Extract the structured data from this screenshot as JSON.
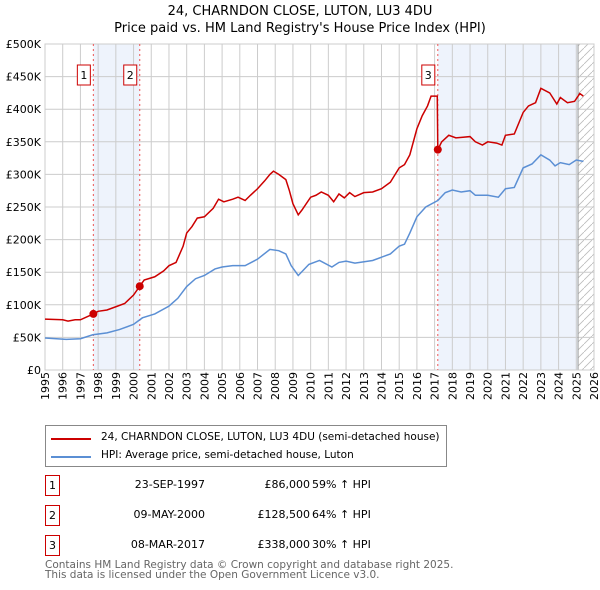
{
  "chart_data": {
    "type": "line",
    "title": "24, CHARNDON CLOSE, LUTON, LU3 4DU",
    "subtitle": "Price paid vs. HM Land Registry's House Price Index (HPI)",
    "xlim": [
      1995,
      2026
    ],
    "ylim": [
      0,
      500000
    ],
    "x_ticks": [
      "1995",
      "1996",
      "1997",
      "1998",
      "1999",
      "2000",
      "2001",
      "2002",
      "2003",
      "2004",
      "2005",
      "2006",
      "2007",
      "2008",
      "2009",
      "2010",
      "2011",
      "2012",
      "2013",
      "2014",
      "2015",
      "2016",
      "2017",
      "2018",
      "2019",
      "2020",
      "2021",
      "2022",
      "2023",
      "2024",
      "2025",
      "2026"
    ],
    "y_ticks": [
      {
        "v": 0,
        "label": "£0"
      },
      {
        "v": 50000,
        "label": "£50K"
      },
      {
        "v": 100000,
        "label": "£100K"
      },
      {
        "v": 150000,
        "label": "£150K"
      },
      {
        "v": 200000,
        "label": "£200K"
      },
      {
        "v": 250000,
        "label": "£250K"
      },
      {
        "v": 300000,
        "label": "£300K"
      },
      {
        "v": 350000,
        "label": "£350K"
      },
      {
        "v": 400000,
        "label": "£400K"
      },
      {
        "v": 450000,
        "label": "£450K"
      },
      {
        "v": 500000,
        "label": "£500K"
      }
    ],
    "grid": true,
    "shaded_ranges": [
      [
        1997.73,
        2000.35
      ],
      [
        2017.18,
        2025.1
      ]
    ],
    "hatched_from": 2025.1,
    "series": [
      {
        "name": "24, CHARNDON CLOSE, LUTON, LU3 4DU (semi-detached house)",
        "color": "#cc0000",
        "points": [
          [
            1995,
            78
          ],
          [
            1996,
            77
          ],
          [
            1996.3,
            75
          ],
          [
            1996.7,
            77
          ],
          [
            1997,
            77
          ],
          [
            1997.73,
            86
          ],
          [
            1998,
            90
          ],
          [
            1998.5,
            92
          ],
          [
            1999,
            97
          ],
          [
            1999.5,
            102
          ],
          [
            2000,
            115
          ],
          [
            2000.35,
            128.5
          ],
          [
            2000.6,
            138
          ],
          [
            2001.2,
            143
          ],
          [
            2001.7,
            152
          ],
          [
            2002,
            160
          ],
          [
            2002.4,
            165
          ],
          [
            2002.8,
            190
          ],
          [
            2003,
            210
          ],
          [
            2003.3,
            220
          ],
          [
            2003.6,
            233
          ],
          [
            2004,
            235
          ],
          [
            2004.5,
            248
          ],
          [
            2004.8,
            262
          ],
          [
            2005.1,
            258
          ],
          [
            2005.6,
            262
          ],
          [
            2005.9,
            265
          ],
          [
            2006.3,
            260
          ],
          [
            2006.6,
            268
          ],
          [
            2007,
            278
          ],
          [
            2007.4,
            290
          ],
          [
            2007.7,
            300
          ],
          [
            2007.9,
            305
          ],
          [
            2008.2,
            300
          ],
          [
            2008.6,
            292
          ],
          [
            2008.8,
            275
          ],
          [
            2009,
            255
          ],
          [
            2009.3,
            238
          ],
          [
            2009.5,
            245
          ],
          [
            2010,
            265
          ],
          [
            2010.3,
            268
          ],
          [
            2010.6,
            273
          ],
          [
            2011,
            268
          ],
          [
            2011.3,
            258
          ],
          [
            2011.6,
            270
          ],
          [
            2011.9,
            264
          ],
          [
            2012.2,
            272
          ],
          [
            2012.5,
            266
          ],
          [
            2013,
            272
          ],
          [
            2013.5,
            273
          ],
          [
            2014,
            278
          ],
          [
            2014.5,
            288
          ],
          [
            2015,
            310
          ],
          [
            2015.3,
            315
          ],
          [
            2015.6,
            330
          ],
          [
            2016,
            370
          ],
          [
            2016.3,
            390
          ],
          [
            2016.6,
            405
          ],
          [
            2016.8,
            420
          ],
          [
            2017.15,
            420
          ],
          [
            2017.18,
            338
          ],
          [
            2017.4,
            350
          ],
          [
            2017.8,
            360
          ],
          [
            2018.2,
            356
          ],
          [
            2018.6,
            357
          ],
          [
            2019,
            358
          ],
          [
            2019.3,
            350
          ],
          [
            2019.7,
            345
          ],
          [
            2020,
            350
          ],
          [
            2020.5,
            348
          ],
          [
            2020.8,
            345
          ],
          [
            2021,
            360
          ],
          [
            2021.5,
            362
          ],
          [
            2022,
            395
          ],
          [
            2022.3,
            405
          ],
          [
            2022.7,
            410
          ],
          [
            2023,
            432
          ],
          [
            2023.5,
            425
          ],
          [
            2023.9,
            408
          ],
          [
            2024.1,
            418
          ],
          [
            2024.5,
            410
          ],
          [
            2024.9,
            412
          ],
          [
            2025.2,
            424
          ],
          [
            2025.4,
            420
          ]
        ]
      },
      {
        "name": "HPI: Average price, semi-detached house, Luton",
        "color": "#5b8fd4",
        "points": [
          [
            1995,
            49
          ],
          [
            1996.2,
            47
          ],
          [
            1997,
            48
          ],
          [
            1997.7,
            54
          ],
          [
            1998.5,
            57
          ],
          [
            1999.2,
            62
          ],
          [
            2000,
            70
          ],
          [
            2000.5,
            80
          ],
          [
            2001.2,
            86
          ],
          [
            2002,
            98
          ],
          [
            2002.5,
            110
          ],
          [
            2003,
            128
          ],
          [
            2003.5,
            140
          ],
          [
            2004,
            145
          ],
          [
            2004.6,
            155
          ],
          [
            2005,
            158
          ],
          [
            2005.6,
            160
          ],
          [
            2006.3,
            160
          ],
          [
            2007,
            170
          ],
          [
            2007.7,
            185
          ],
          [
            2008.2,
            183
          ],
          [
            2008.6,
            178
          ],
          [
            2008.9,
            160
          ],
          [
            2009.3,
            145
          ],
          [
            2009.9,
            162
          ],
          [
            2010.5,
            168
          ],
          [
            2011.2,
            158
          ],
          [
            2011.6,
            165
          ],
          [
            2012,
            167
          ],
          [
            2012.5,
            164
          ],
          [
            2013.5,
            168
          ],
          [
            2014.5,
            178
          ],
          [
            2015,
            190
          ],
          [
            2015.3,
            193
          ],
          [
            2015.6,
            210
          ],
          [
            2016,
            235
          ],
          [
            2016.5,
            250
          ],
          [
            2017.18,
            260
          ],
          [
            2017.6,
            272
          ],
          [
            2018,
            276
          ],
          [
            2018.5,
            273
          ],
          [
            2019,
            275
          ],
          [
            2019.3,
            268
          ],
          [
            2020,
            268
          ],
          [
            2020.6,
            265
          ],
          [
            2021,
            278
          ],
          [
            2021.5,
            280
          ],
          [
            2022,
            310
          ],
          [
            2022.5,
            316
          ],
          [
            2023,
            330
          ],
          [
            2023.5,
            322
          ],
          [
            2023.8,
            313
          ],
          [
            2024.1,
            318
          ],
          [
            2024.6,
            315
          ],
          [
            2025,
            322
          ],
          [
            2025.4,
            320
          ]
        ]
      }
    ],
    "value_unit": "thousands GBP",
    "sales": [
      {
        "id": "1",
        "date": "23-SEP-1997",
        "year": 1997.73,
        "value": 86,
        "price": "£86,000",
        "hpi": "59% ↑ HPI"
      },
      {
        "id": "2",
        "date": "09-MAY-2000",
        "year": 2000.35,
        "value": 128.5,
        "price": "£128,500",
        "hpi": "64% ↑ HPI"
      },
      {
        "id": "3",
        "date": "08-MAR-2017",
        "year": 2017.18,
        "value": 338,
        "price": "£338,000",
        "hpi": "30% ↑ HPI"
      }
    ]
  },
  "footer": {
    "line1": "Contains HM Land Registry data © Crown copyright and database right 2025.",
    "line2": "This data is licensed under the Open Government Licence v3.0."
  }
}
